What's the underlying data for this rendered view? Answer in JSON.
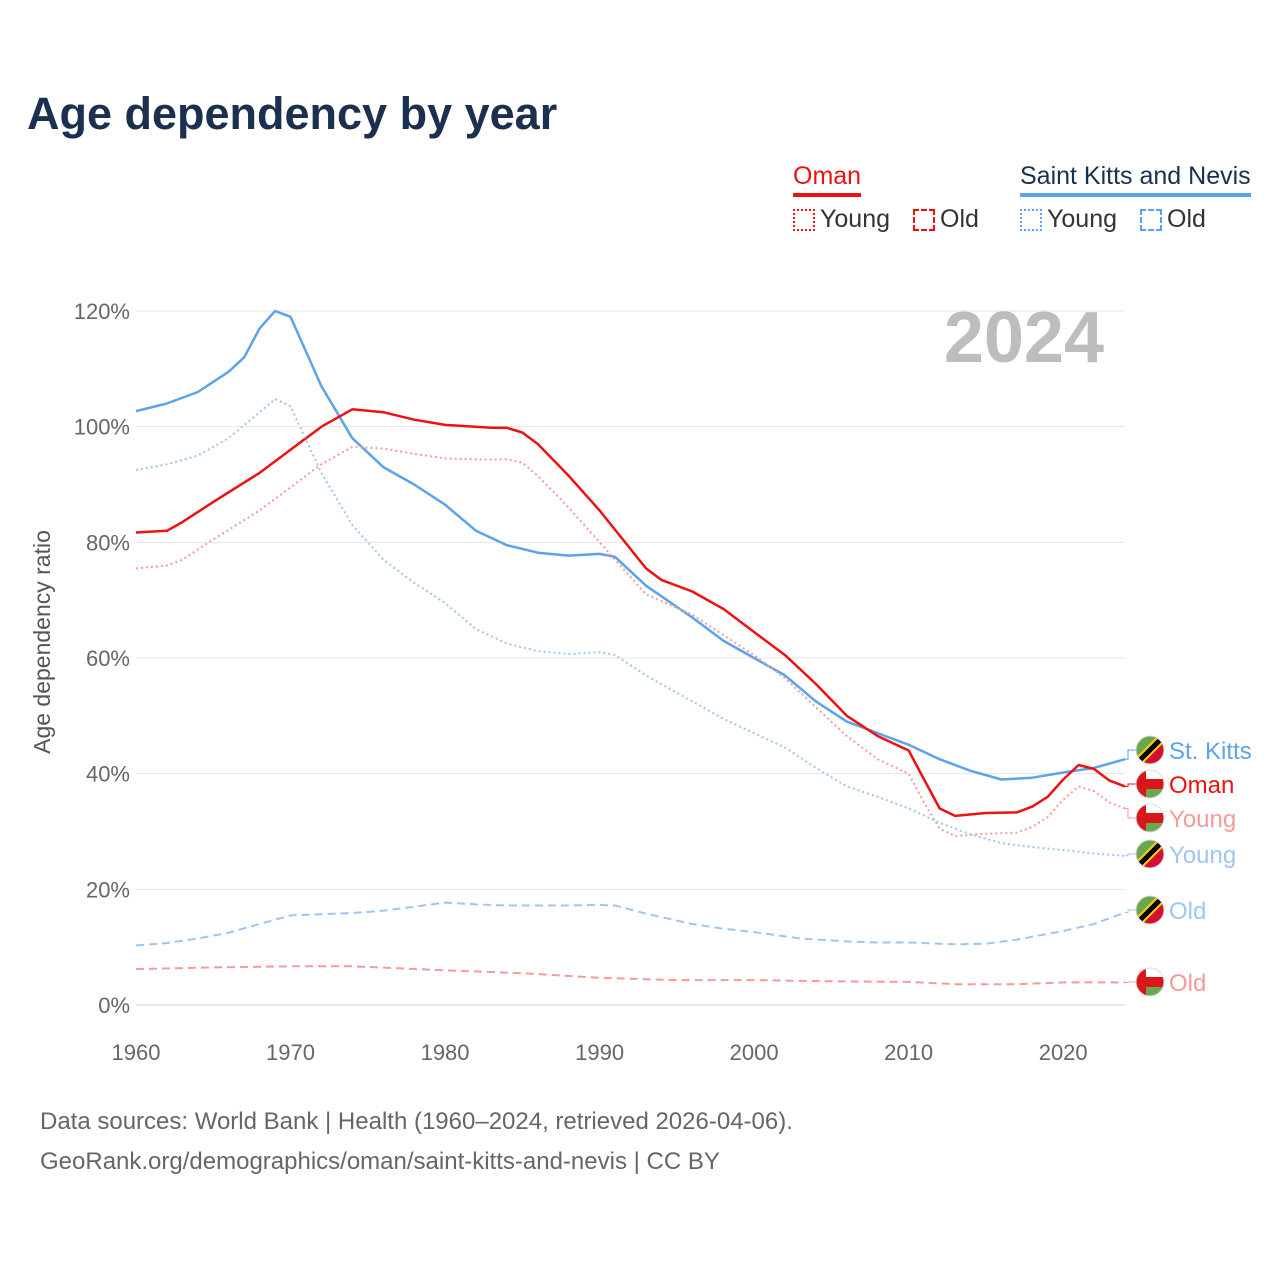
{
  "title": "Age dependency by year",
  "year_watermark": "2024",
  "legend": {
    "groups": [
      {
        "name": "Oman",
        "color": "#ee1111",
        "items": [
          "Young",
          "Old"
        ]
      },
      {
        "name": "Saint Kitts and Nevis",
        "color": "#5ba3ec",
        "items": [
          "Young",
          "Old"
        ]
      }
    ]
  },
  "footer": {
    "line1": "Data sources: World Bank | Health (1960–2024, retrieved 2026-04-06).",
    "line2": "GeoRank.org/demographics/oman/saint-kitts-and-nevis | CC BY"
  },
  "chart_data": {
    "type": "line",
    "title": "Age dependency by year",
    "xlabel": "",
    "ylabel": "Age dependency ratio",
    "xlim": [
      1960,
      2024
    ],
    "ylim": [
      0,
      120
    ],
    "x_ticks": [
      "1960",
      "1970",
      "1980",
      "1990",
      "2000",
      "2010",
      "2020"
    ],
    "y_ticks": [
      "0%",
      "20%",
      "40%",
      "60%",
      "80%",
      "100%",
      "120%"
    ],
    "grid": true,
    "legend_position": "top-right",
    "series": [
      {
        "name": "Saint Kitts and Nevis",
        "end_label": "St. Kitts",
        "country": "kn",
        "style": "solid",
        "color": "#5ba3ec",
        "points": [
          [
            1960,
            102.7
          ],
          [
            1962,
            104
          ],
          [
            1964,
            106
          ],
          [
            1966,
            109.5
          ],
          [
            1967,
            112
          ],
          [
            1968,
            117
          ],
          [
            1969,
            120
          ],
          [
            1970,
            119
          ],
          [
            1972,
            107
          ],
          [
            1974,
            98
          ],
          [
            1976,
            93
          ],
          [
            1978,
            90
          ],
          [
            1980,
            86.5
          ],
          [
            1982,
            82
          ],
          [
            1984,
            79.5
          ],
          [
            1986,
            78.2
          ],
          [
            1988,
            77.7
          ],
          [
            1990,
            78
          ],
          [
            1991,
            77.5
          ],
          [
            1993,
            72.5
          ],
          [
            1996,
            67
          ],
          [
            1998,
            63
          ],
          [
            2000,
            60
          ],
          [
            2002,
            57
          ],
          [
            2004,
            52.5
          ],
          [
            2006,
            49
          ],
          [
            2008,
            47
          ],
          [
            2010,
            45
          ],
          [
            2012,
            42.5
          ],
          [
            2014,
            40.5
          ],
          [
            2016,
            39
          ],
          [
            2018,
            39.3
          ],
          [
            2020,
            40.2
          ],
          [
            2022,
            41
          ],
          [
            2024,
            42.5
          ]
        ]
      },
      {
        "name": "Oman",
        "end_label": "Oman",
        "country": "om",
        "style": "solid",
        "color": "#ee1111",
        "points": [
          [
            1960,
            81.7
          ],
          [
            1962,
            82
          ],
          [
            1963,
            83.5
          ],
          [
            1965,
            87
          ],
          [
            1968,
            92
          ],
          [
            1970,
            96
          ],
          [
            1972,
            100
          ],
          [
            1974,
            103
          ],
          [
            1976,
            102.5
          ],
          [
            1978,
            101.2
          ],
          [
            1980,
            100.3
          ],
          [
            1983,
            99.8
          ],
          [
            1984,
            99.8
          ],
          [
            1985,
            99
          ],
          [
            1986,
            97
          ],
          [
            1988,
            91.5
          ],
          [
            1990,
            85.5
          ],
          [
            1993,
            75.5
          ],
          [
            1994,
            73.5
          ],
          [
            1996,
            71.5
          ],
          [
            1998,
            68.5
          ],
          [
            2000,
            64.5
          ],
          [
            2002,
            60.5
          ],
          [
            2004,
            55.5
          ],
          [
            2006,
            50
          ],
          [
            2008,
            46.5
          ],
          [
            2010,
            44
          ],
          [
            2011,
            39
          ],
          [
            2012,
            34
          ],
          [
            2013,
            32.7
          ],
          [
            2015,
            33.2
          ],
          [
            2017,
            33.3
          ],
          [
            2018,
            34.3
          ],
          [
            2019,
            36
          ],
          [
            2020,
            39
          ],
          [
            2021,
            41.5
          ],
          [
            2022,
            40.8
          ],
          [
            2023,
            38.8
          ],
          [
            2024,
            37.8
          ]
        ]
      },
      {
        "name": "Oman Young",
        "end_label": "Young",
        "country": "om",
        "style": "dotted",
        "color": "#f79a9a",
        "points": [
          [
            1960,
            75.5
          ],
          [
            1962,
            76
          ],
          [
            1963,
            77
          ],
          [
            1965,
            80.5
          ],
          [
            1968,
            85.5
          ],
          [
            1970,
            89.5
          ],
          [
            1972,
            93.5
          ],
          [
            1974,
            96.5
          ],
          [
            1976,
            96.2
          ],
          [
            1978,
            95.3
          ],
          [
            1980,
            94.5
          ],
          [
            1983,
            94.3
          ],
          [
            1984,
            94.4
          ],
          [
            1985,
            93.8
          ],
          [
            1986,
            91.5
          ],
          [
            1988,
            86
          ],
          [
            1990,
            80
          ],
          [
            1993,
            71
          ],
          [
            1996,
            67.5
          ],
          [
            1998,
            64
          ],
          [
            2000,
            60.5
          ],
          [
            2002,
            56.5
          ],
          [
            2004,
            51.5
          ],
          [
            2006,
            46.5
          ],
          [
            2008,
            42.5
          ],
          [
            2010,
            40
          ],
          [
            2011,
            35
          ],
          [
            2012,
            30.5
          ],
          [
            2013,
            29.2
          ],
          [
            2015,
            29.6
          ],
          [
            2017,
            29.8
          ],
          [
            2018,
            30.8
          ],
          [
            2019,
            32.5
          ],
          [
            2020,
            35.5
          ],
          [
            2021,
            37.8
          ],
          [
            2022,
            37
          ],
          [
            2023,
            35
          ],
          [
            2024,
            34
          ]
        ]
      },
      {
        "name": "Saint Kitts and Nevis Young",
        "end_label": "Young",
        "country": "kn",
        "style": "dotted",
        "color": "#9fc5f0",
        "points": [
          [
            1960,
            92.5
          ],
          [
            1962,
            93.5
          ],
          [
            1964,
            95
          ],
          [
            1966,
            98
          ],
          [
            1968,
            102.5
          ],
          [
            1969,
            104.8
          ],
          [
            1970,
            103.5
          ],
          [
            1972,
            92
          ],
          [
            1974,
            83
          ],
          [
            1976,
            77
          ],
          [
            1978,
            73
          ],
          [
            1980,
            69.5
          ],
          [
            1982,
            65
          ],
          [
            1984,
            62.5
          ],
          [
            1986,
            61.2
          ],
          [
            1988,
            60.7
          ],
          [
            1990,
            61
          ],
          [
            1991,
            60.5
          ],
          [
            1993,
            57
          ],
          [
            1996,
            52.5
          ],
          [
            1998,
            49.5
          ],
          [
            2000,
            47
          ],
          [
            2002,
            44.5
          ],
          [
            2004,
            41
          ],
          [
            2006,
            37.8
          ],
          [
            2008,
            36
          ],
          [
            2010,
            34
          ],
          [
            2012,
            31.5
          ],
          [
            2014,
            29.5
          ],
          [
            2016,
            28
          ],
          [
            2018,
            27.3
          ],
          [
            2020,
            26.8
          ],
          [
            2022,
            26.2
          ],
          [
            2024,
            25.8
          ]
        ]
      },
      {
        "name": "Saint Kitts and Nevis Old",
        "end_label": "Old",
        "country": "kn",
        "style": "dashed",
        "color": "#9fc5f0",
        "points": [
          [
            1960,
            10.3
          ],
          [
            1962,
            10.7
          ],
          [
            1964,
            11.5
          ],
          [
            1966,
            12.5
          ],
          [
            1968,
            14
          ],
          [
            1970,
            15.5
          ],
          [
            1972,
            15.7
          ],
          [
            1974,
            15.9
          ],
          [
            1976,
            16.3
          ],
          [
            1978,
            17
          ],
          [
            1980,
            17.7
          ],
          [
            1982,
            17.4
          ],
          [
            1984,
            17.2
          ],
          [
            1986,
            17.2
          ],
          [
            1988,
            17.2
          ],
          [
            1990,
            17.3
          ],
          [
            1991,
            17.2
          ],
          [
            1993,
            15.8
          ],
          [
            1996,
            14
          ],
          [
            1998,
            13.2
          ],
          [
            2000,
            12.6
          ],
          [
            2003,
            11.5
          ],
          [
            2006,
            11
          ],
          [
            2008,
            10.8
          ],
          [
            2010,
            10.8
          ],
          [
            2013,
            10.5
          ],
          [
            2015,
            10.6
          ],
          [
            2017,
            11.3
          ],
          [
            2020,
            12.8
          ],
          [
            2022,
            14
          ],
          [
            2024,
            16
          ]
        ]
      },
      {
        "name": "Oman Old",
        "end_label": "Old",
        "country": "om",
        "style": "dashed",
        "color": "#f79a9a",
        "points": [
          [
            1960,
            6.2
          ],
          [
            1965,
            6.5
          ],
          [
            1970,
            6.7
          ],
          [
            1974,
            6.7
          ],
          [
            1980,
            6
          ],
          [
            1985,
            5.5
          ],
          [
            1990,
            4.7
          ],
          [
            1995,
            4.3
          ],
          [
            2000,
            4.3
          ],
          [
            2005,
            4.1
          ],
          [
            2010,
            4
          ],
          [
            2013,
            3.6
          ],
          [
            2017,
            3.6
          ],
          [
            2020,
            3.9
          ],
          [
            2024,
            3.9
          ]
        ]
      }
    ]
  }
}
